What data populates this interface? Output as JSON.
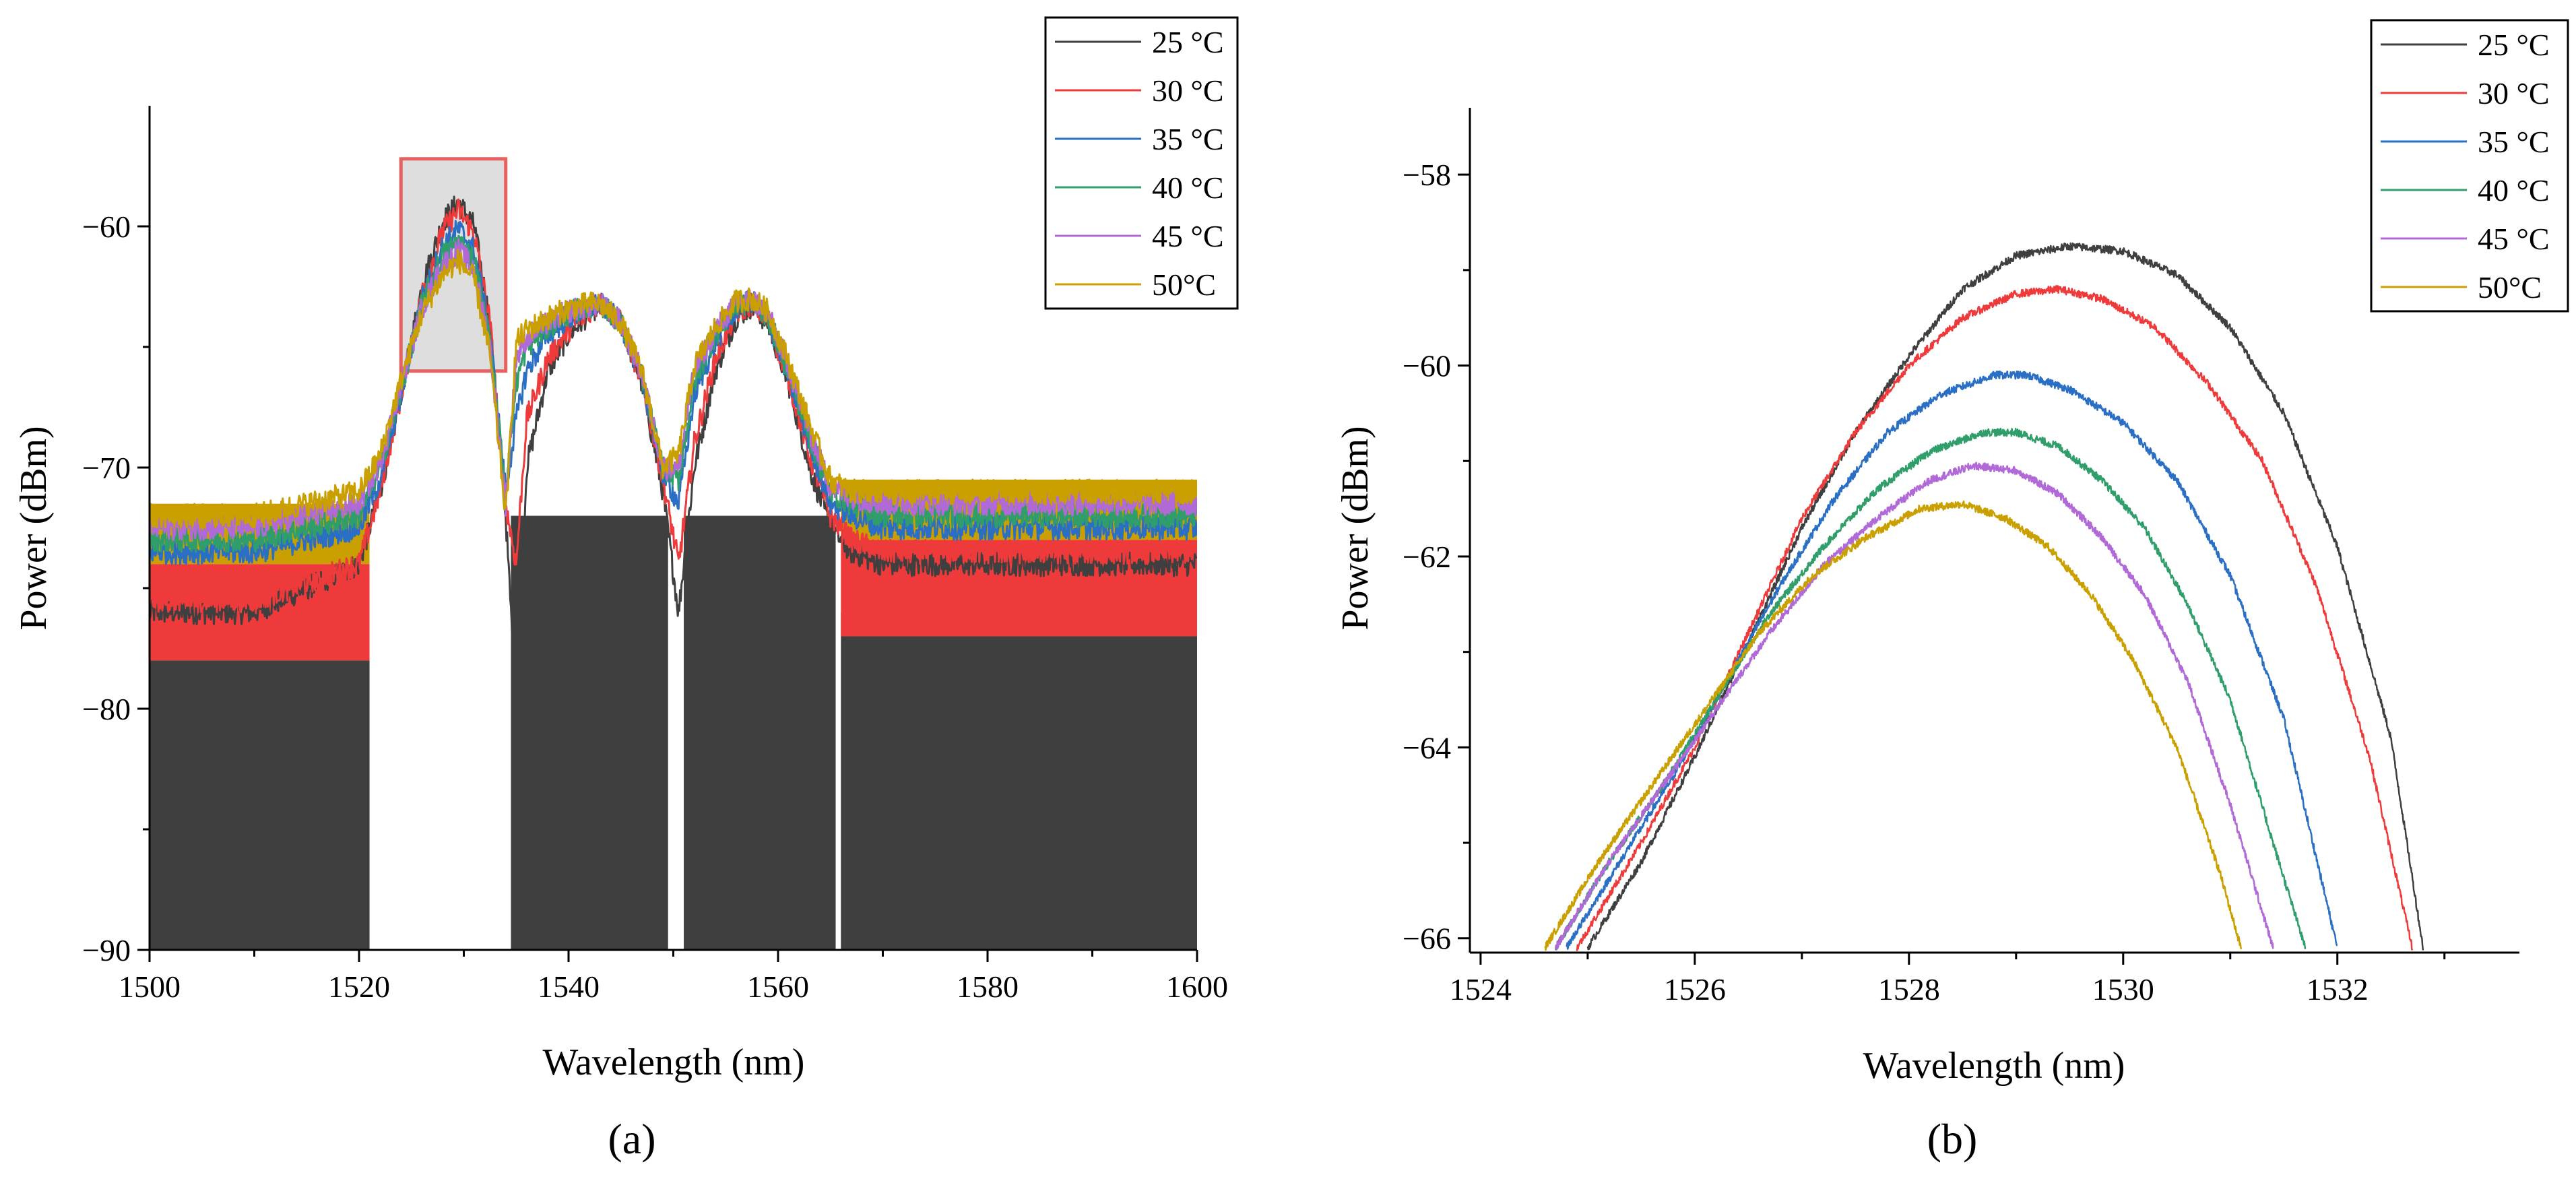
{
  "figure": {
    "panel_labels": [
      "(a)",
      "(b)"
    ],
    "colors": {
      "25 °C": "#3f3f3f",
      "30 °C": "#ee3a3a",
      "35 °C": "#2a6fc4",
      "40 °C": "#2f9e6a",
      "45 °C": "#b069d6",
      "50°C": "#c9a000"
    }
  },
  "chart_data": [
    {
      "id": "a",
      "type": "line",
      "title": "",
      "panel_label": "(a)",
      "xlabel": "Wavelength (nm)",
      "ylabel": "Power (dBm)",
      "xlim": [
        1500,
        1600
      ],
      "ylim": [
        -90,
        -55
      ],
      "xticks": [
        1500,
        1520,
        1540,
        1560,
        1580,
        1600
      ],
      "xtick_labels": [
        "1500",
        "1520",
        "1540",
        "1560",
        "1580",
        "1600"
      ],
      "yticks": [
        -90,
        -80,
        -70,
        -60
      ],
      "ytick_labels": [
        "−90",
        "−80",
        "−70",
        "−60"
      ],
      "legend": [
        "25 °C",
        "30 °C",
        "35 °C",
        "40 °C",
        "45 °C",
        "50°C"
      ],
      "legend_position": "top-right",
      "highlight_box": {
        "x": [
          1524,
          1534
        ],
        "y": [
          -66,
          -57.2
        ]
      },
      "noise_floor_bands": [
        {
          "name": "25 °C",
          "ranges": [
            [
              1500,
              1521,
              -90,
              -78
            ],
            [
              1534.5,
              1549.5,
              -90,
              -72
            ],
            [
              1551,
              1565.5,
              -90,
              -72
            ],
            [
              1566,
              1600,
              -90,
              -76
            ]
          ]
        },
        {
          "name": "30 °C",
          "ranges": [
            [
              1500,
              1521,
              -78,
              -74
            ],
            [
              1566,
              1600,
              -77,
              -73
            ]
          ]
        },
        {
          "name": "50°C",
          "ranges": [
            [
              1500,
              1521,
              -74,
              -71.5
            ],
            [
              1566,
              1600,
              -73,
              -70.5
            ]
          ]
        }
      ],
      "series": [
        {
          "name": "25 °C",
          "x": [
            1500,
            1510,
            1520,
            1522,
            1524,
            1526,
            1528,
            1529.5,
            1531,
            1532.5,
            1534,
            1535,
            1536,
            1538,
            1540,
            1542,
            1543,
            1545,
            1547,
            1549,
            1550.5,
            1552,
            1554,
            1556,
            1557.5,
            1559,
            1561,
            1563,
            1565,
            1567,
            1570,
            1580,
            1590,
            1600
          ],
          "y": [
            -76,
            -76,
            -74,
            -71,
            -67,
            -62.5,
            -59.8,
            -59,
            -60,
            -64,
            -72,
            -80,
            -70,
            -66,
            -64.5,
            -63.6,
            -63.2,
            -64,
            -66.5,
            -71,
            -76,
            -70,
            -66,
            -63.8,
            -63.3,
            -64,
            -66.5,
            -70,
            -72.5,
            -73.5,
            -74,
            -74,
            -74,
            -74
          ]
        },
        {
          "name": "30 °C",
          "x": [
            1500,
            1510,
            1520,
            1522,
            1524,
            1526,
            1528,
            1529.5,
            1531,
            1532.5,
            1534,
            1535,
            1536,
            1538,
            1540,
            1542,
            1543,
            1545,
            1547,
            1549,
            1550.5,
            1552,
            1554,
            1556,
            1557.5,
            1559,
            1561,
            1563,
            1565,
            1567,
            1570,
            1580,
            1590,
            1600
          ],
          "y": [
            -75.5,
            -75.5,
            -74,
            -71,
            -67,
            -62.8,
            -60.2,
            -59.3,
            -60.3,
            -64,
            -71.5,
            -74,
            -68,
            -65.5,
            -64.3,
            -63.5,
            -63.2,
            -64,
            -66.4,
            -70.5,
            -74,
            -69,
            -65.5,
            -63.6,
            -63.2,
            -63.9,
            -66.3,
            -69.5,
            -72,
            -73,
            -73.5,
            -73.5,
            -73.5,
            -73.5
          ]
        },
        {
          "name": "35 °C",
          "x": [
            1500,
            1510,
            1520,
            1522,
            1524,
            1526,
            1528,
            1529.5,
            1531,
            1532.5,
            1534,
            1535,
            1536,
            1538,
            1540,
            1542,
            1543,
            1545,
            1547,
            1549,
            1550.5,
            1552,
            1554,
            1556,
            1557.5,
            1559,
            1561,
            1563,
            1565,
            1567,
            1570,
            1580,
            1590,
            1600
          ],
          "y": [
            -73.5,
            -73.5,
            -72.5,
            -70.5,
            -67,
            -63,
            -60.8,
            -60.1,
            -61,
            -64.5,
            -71,
            -68,
            -66,
            -64.5,
            -63.8,
            -63.4,
            -63.2,
            -64,
            -66.3,
            -70.2,
            -71.5,
            -67,
            -64.8,
            -63.4,
            -63.1,
            -63.8,
            -66.2,
            -69,
            -71.5,
            -72,
            -72.5,
            -72.5,
            -72.5,
            -72.5
          ]
        },
        {
          "name": "40 °C",
          "x": [
            1500,
            1510,
            1520,
            1522,
            1524,
            1526,
            1528,
            1529.5,
            1531,
            1532.5,
            1534,
            1535,
            1536,
            1538,
            1540,
            1542,
            1543,
            1545,
            1547,
            1549,
            1550.5,
            1552,
            1554,
            1556,
            1557.5,
            1559,
            1561,
            1563,
            1565,
            1567,
            1570,
            1580,
            1590,
            1600
          ],
          "y": [
            -73,
            -73,
            -72,
            -70,
            -66.8,
            -63.2,
            -61.2,
            -60.6,
            -61.4,
            -64.8,
            -71,
            -66.5,
            -65,
            -64.2,
            -63.6,
            -63.3,
            -63.2,
            -64,
            -66.2,
            -70,
            -70.5,
            -66.5,
            -64.5,
            -63.3,
            -63.1,
            -63.7,
            -66,
            -68.8,
            -71,
            -71.5,
            -72,
            -72,
            -72,
            -72
          ]
        },
        {
          "name": "45 °C",
          "x": [
            1500,
            1510,
            1520,
            1522,
            1524,
            1526,
            1528,
            1529.5,
            1531,
            1532.5,
            1534,
            1535,
            1536,
            1538,
            1540,
            1542,
            1543,
            1545,
            1547,
            1549,
            1550.5,
            1552,
            1554,
            1556,
            1557.5,
            1559,
            1561,
            1563,
            1565,
            1567,
            1570,
            1580,
            1590,
            1600
          ],
          "y": [
            -72.5,
            -72.5,
            -71.5,
            -69.8,
            -66.6,
            -63.4,
            -61.6,
            -61,
            -61.8,
            -65,
            -71.5,
            -65.5,
            -64.6,
            -64,
            -63.5,
            -63.3,
            -63.2,
            -64,
            -66.1,
            -70,
            -70,
            -66,
            -64.3,
            -63.2,
            -63,
            -63.6,
            -65.8,
            -68.5,
            -70.8,
            -71.2,
            -71.5,
            -71.5,
            -71.5,
            -71.5
          ]
        },
        {
          "name": "50°C",
          "x": [
            1500,
            1510,
            1520,
            1522,
            1524,
            1526,
            1528,
            1529.5,
            1531,
            1532.5,
            1534,
            1535,
            1536,
            1538,
            1540,
            1542,
            1543,
            1545,
            1547,
            1549,
            1550.5,
            1552,
            1554,
            1556,
            1557.5,
            1559,
            1561,
            1563,
            1565,
            1567,
            1570,
            1580,
            1590,
            1600
          ],
          "y": [
            -72,
            -72,
            -71,
            -69.5,
            -66.4,
            -63.6,
            -62,
            -61.4,
            -62.2,
            -65.3,
            -72,
            -64.8,
            -64.3,
            -63.8,
            -63.4,
            -63.2,
            -63.2,
            -64,
            -66,
            -70,
            -69.5,
            -65.8,
            -64.2,
            -63.1,
            -63,
            -63.5,
            -65.6,
            -68.2,
            -70.5,
            -71,
            -71,
            -71,
            -71,
            -71
          ]
        }
      ]
    },
    {
      "id": "b",
      "type": "line",
      "title": "",
      "panel_label": "(b)",
      "xlabel": "Wavelength (nm)",
      "ylabel": "Power (dBm)",
      "xlim": [
        1523.9,
        1533.7
      ],
      "ylim": [
        -66.15,
        -57.3
      ],
      "xticks": [
        1524,
        1526,
        1528,
        1530,
        1532
      ],
      "xtick_labels": [
        "1524",
        "1526",
        "1528",
        "1530",
        "1532"
      ],
      "yticks": [
        -66,
        -64,
        -62,
        -60,
        -58
      ],
      "ytick_labels": [
        "−66",
        "−64",
        "−62",
        "−60",
        "−58"
      ],
      "legend": [
        "25 °C",
        "30 °C",
        "35 °C",
        "40 °C",
        "45 °C",
        "50°C"
      ],
      "legend_position": "top-right",
      "series": [
        {
          "name": "25 °C",
          "x": [
            1525.0,
            1525.5,
            1526.0,
            1526.5,
            1527.0,
            1527.5,
            1528.0,
            1528.5,
            1529.0,
            1529.5,
            1530.0,
            1530.5,
            1531.0,
            1531.5,
            1532.0,
            1532.5,
            1532.8
          ],
          "y": [
            -66.1,
            -65.2,
            -64.1,
            -62.9,
            -61.7,
            -60.7,
            -59.9,
            -59.2,
            -58.85,
            -58.75,
            -58.8,
            -59.05,
            -59.6,
            -60.5,
            -61.9,
            -63.9,
            -66.1
          ]
        },
        {
          "name": "30 °C",
          "x": [
            1524.9,
            1525.5,
            1526.0,
            1526.5,
            1527.0,
            1527.5,
            1528.0,
            1528.5,
            1529.0,
            1529.4,
            1529.8,
            1530.3,
            1530.8,
            1531.3,
            1531.8,
            1532.3,
            1532.7
          ],
          "y": [
            -66.1,
            -65.0,
            -64.0,
            -62.8,
            -61.6,
            -60.7,
            -60.0,
            -59.5,
            -59.25,
            -59.2,
            -59.3,
            -59.6,
            -60.2,
            -61.0,
            -62.3,
            -64.1,
            -66.1
          ]
        },
        {
          "name": "35 °C",
          "x": [
            1524.8,
            1525.3,
            1525.8,
            1526.3,
            1526.8,
            1527.3,
            1527.8,
            1528.3,
            1528.8,
            1529.1,
            1529.5,
            1530.0,
            1530.5,
            1531.0,
            1531.5,
            1532.0
          ],
          "y": [
            -66.1,
            -65.2,
            -64.3,
            -63.3,
            -62.3,
            -61.4,
            -60.7,
            -60.3,
            -60.1,
            -60.1,
            -60.25,
            -60.6,
            -61.2,
            -62.2,
            -63.7,
            -66.1
          ]
        },
        {
          "name": "40 °C",
          "x": [
            1524.7,
            1525.2,
            1525.7,
            1526.2,
            1526.7,
            1527.2,
            1527.7,
            1528.2,
            1528.7,
            1529.0,
            1529.4,
            1529.8,
            1530.2,
            1530.6,
            1531.0,
            1531.4,
            1531.7
          ],
          "y": [
            -66.1,
            -65.2,
            -64.4,
            -63.5,
            -62.6,
            -61.9,
            -61.3,
            -60.9,
            -60.7,
            -60.7,
            -60.85,
            -61.2,
            -61.7,
            -62.5,
            -63.5,
            -65.0,
            -66.1
          ]
        },
        {
          "name": "45 °C",
          "x": [
            1524.7,
            1525.2,
            1525.7,
            1526.2,
            1526.7,
            1527.2,
            1527.7,
            1528.2,
            1528.6,
            1529.0,
            1529.4,
            1529.8,
            1530.2,
            1530.6,
            1531.0,
            1531.4
          ],
          "y": [
            -66.1,
            -65.2,
            -64.4,
            -63.6,
            -62.8,
            -62.1,
            -61.6,
            -61.2,
            -61.05,
            -61.1,
            -61.35,
            -61.8,
            -62.4,
            -63.3,
            -64.6,
            -66.1
          ]
        },
        {
          "name": "50°C",
          "x": [
            1524.6,
            1525.1,
            1525.6,
            1526.1,
            1526.6,
            1527.1,
            1527.6,
            1528.1,
            1528.5,
            1528.9,
            1529.3,
            1529.7,
            1530.1,
            1530.5,
            1530.9,
            1531.1
          ],
          "y": [
            -66.1,
            -65.2,
            -64.4,
            -63.6,
            -62.8,
            -62.2,
            -61.8,
            -61.5,
            -61.45,
            -61.6,
            -61.9,
            -62.4,
            -63.1,
            -64.0,
            -65.3,
            -66.1
          ]
        }
      ]
    }
  ]
}
